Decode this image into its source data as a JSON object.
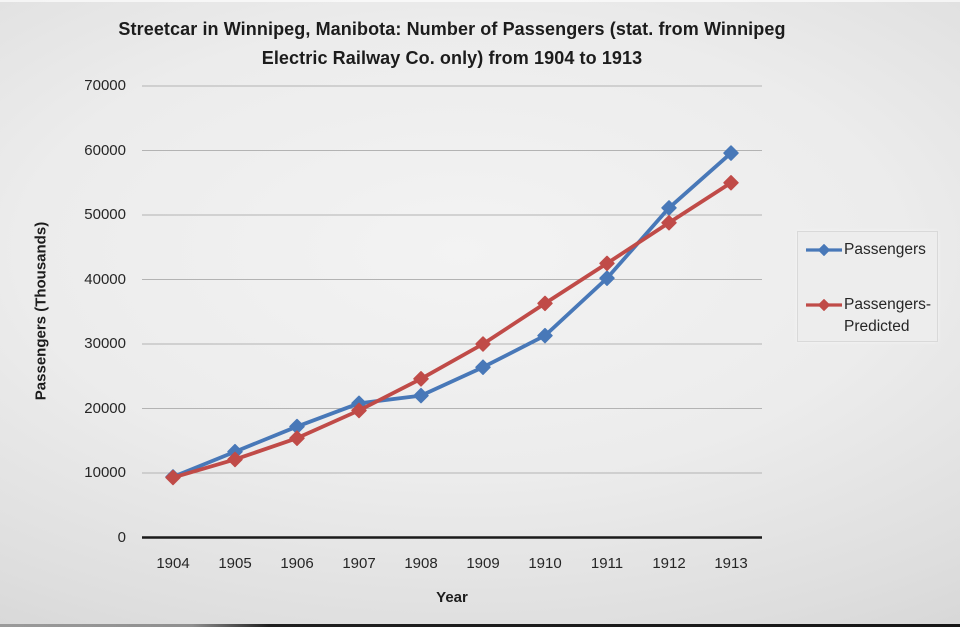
{
  "chart_data": {
    "type": "line",
    "title": "Streetcar in Winnipeg, Manibota: Number of Passengers (stat. from Winnipeg Electric Railway Co. only) from 1904 to 1913",
    "title_lines": [
      "Streetcar in Winnipeg, Manibota: Number of Passengers (stat. from Winnipeg",
      "Electric Railway Co. only) from 1904 to 1913"
    ],
    "xlabel": "Year",
    "ylabel": "Passengers (Thousands)",
    "categories": [
      "1904",
      "1905",
      "1906",
      "1907",
      "1908",
      "1909",
      "1910",
      "1911",
      "1912",
      "1913"
    ],
    "series": [
      {
        "name": "Passengers",
        "color": "#4878B8",
        "marker": "diamond",
        "values": [
          9400,
          13300,
          17200,
          20800,
          22000,
          26400,
          31300,
          40200,
          51100,
          59600
        ]
      },
      {
        "name": "Passengers-Predicted",
        "color": "#C04B48",
        "marker": "diamond",
        "values": [
          9300,
          12100,
          15400,
          19700,
          24600,
          30000,
          36300,
          42500,
          48800,
          55000
        ]
      }
    ],
    "ylim": [
      0,
      70000
    ],
    "yticks": [
      0,
      10000,
      20000,
      30000,
      40000,
      50000,
      60000,
      70000
    ],
    "grid": "horizontal",
    "gridline_color": "#b3b3b3",
    "axis_color": "#1a1a1a",
    "text_color": "#262626",
    "legend_position": "right",
    "legend": {
      "entries": [
        {
          "series": 0,
          "lines": [
            "Passengers"
          ]
        },
        {
          "series": 1,
          "lines": [
            "Passengers-",
            "Predicted"
          ]
        }
      ]
    }
  }
}
